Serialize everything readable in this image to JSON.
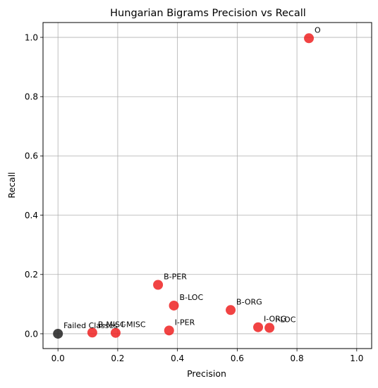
{
  "chart_data": {
    "type": "scatter",
    "title": "Hungarian Bigrams Precision vs Recall",
    "xlabel": "Precision",
    "ylabel": "Recall",
    "xlim": [
      -0.05,
      1.05
    ],
    "ylim": [
      -0.05,
      1.05
    ],
    "xticks": [
      0.0,
      0.2,
      0.4,
      0.6,
      0.8,
      1.0
    ],
    "yticks": [
      0.0,
      0.2,
      0.4,
      0.6,
      0.8,
      1.0
    ],
    "xtick_labels": [
      "0.0",
      "0.2",
      "0.4",
      "0.6",
      "0.8",
      "1.0"
    ],
    "ytick_labels": [
      "0.0",
      "0.2",
      "0.4",
      "0.6",
      "0.8",
      "1.0"
    ],
    "grid": true,
    "point_color": "#ee2222",
    "failed_color": "#222222",
    "points": [
      {
        "label": "O",
        "x": 0.84,
        "y": 0.997,
        "failed": false
      },
      {
        "label": "B-PER",
        "x": 0.335,
        "y": 0.165,
        "failed": false
      },
      {
        "label": "B-LOC",
        "x": 0.388,
        "y": 0.095,
        "failed": false
      },
      {
        "label": "B-ORG",
        "x": 0.578,
        "y": 0.08,
        "failed": false
      },
      {
        "label": "I-ORG",
        "x": 0.67,
        "y": 0.022,
        "failed": false
      },
      {
        "label": "I-LOC",
        "x": 0.708,
        "y": 0.02,
        "failed": false
      },
      {
        "label": "I-PER",
        "x": 0.372,
        "y": 0.011,
        "failed": false
      },
      {
        "label": "B-MISC",
        "x": 0.115,
        "y": 0.004,
        "failed": false
      },
      {
        "label": "I-MISC",
        "x": 0.193,
        "y": 0.003,
        "failed": false
      },
      {
        "label": "Failed Classes",
        "x": 0.0,
        "y": 0.0,
        "failed": true
      }
    ]
  }
}
